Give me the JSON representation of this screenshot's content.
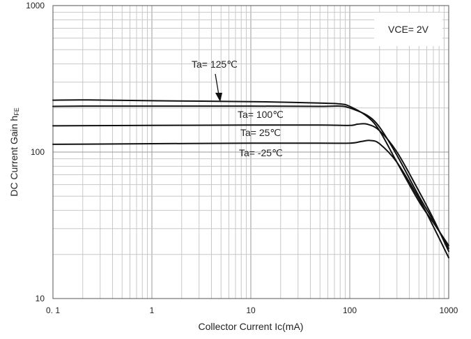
{
  "chart_data": {
    "type": "line",
    "title": "",
    "xlabel": "Collector Current   Ic(mA)",
    "ylabel": "DC Current Gain  h",
    "ylabel_sub": "FE",
    "x_scale": "log",
    "y_scale": "log",
    "xlim": [
      0.1,
      1000
    ],
    "ylim": [
      10,
      1000
    ],
    "x_ticks": [
      0.1,
      1,
      10,
      100,
      1000
    ],
    "x_tick_labels": [
      "0. 1",
      "1",
      "10",
      "100",
      "1000"
    ],
    "y_ticks": [
      10,
      100,
      1000
    ],
    "y_tick_labels": [
      "10",
      "100",
      "1000"
    ],
    "grid": true,
    "condition_label": "VCE= 2V",
    "series": [
      {
        "name": "Ta= 125℃",
        "x": [
          0.1,
          0.2,
          1,
          10,
          50,
          80,
          100,
          150,
          200,
          300,
          500,
          700,
          1000
        ],
        "y": [
          226,
          227,
          224,
          221,
          216,
          213,
          205,
          175,
          140,
          85,
          46,
          33,
          23
        ]
      },
      {
        "name": "Ta= 100℃",
        "x": [
          0.1,
          0.2,
          1,
          10,
          50,
          80,
          100,
          150,
          200,
          300,
          500,
          700,
          1000
        ],
        "y": [
          205,
          206,
          206,
          206,
          205,
          206,
          200,
          178,
          148,
          95,
          50,
          34,
          22
        ]
      },
      {
        "name": "Ta= 25℃",
        "x": [
          0.1,
          1,
          10,
          50,
          100,
          120,
          150,
          200,
          300,
          500,
          700,
          1000
        ],
        "y": [
          151,
          152,
          153,
          153,
          152,
          155,
          155,
          140,
          100,
          54,
          35,
          21
        ]
      },
      {
        "name": "Ta= -25℃",
        "x": [
          0.1,
          1,
          10,
          50,
          100,
          130,
          160,
          200,
          300,
          500,
          700,
          1000
        ],
        "y": [
          113,
          114,
          115,
          115,
          115,
          118,
          120,
          114,
          85,
          48,
          31,
          19
        ]
      }
    ]
  }
}
